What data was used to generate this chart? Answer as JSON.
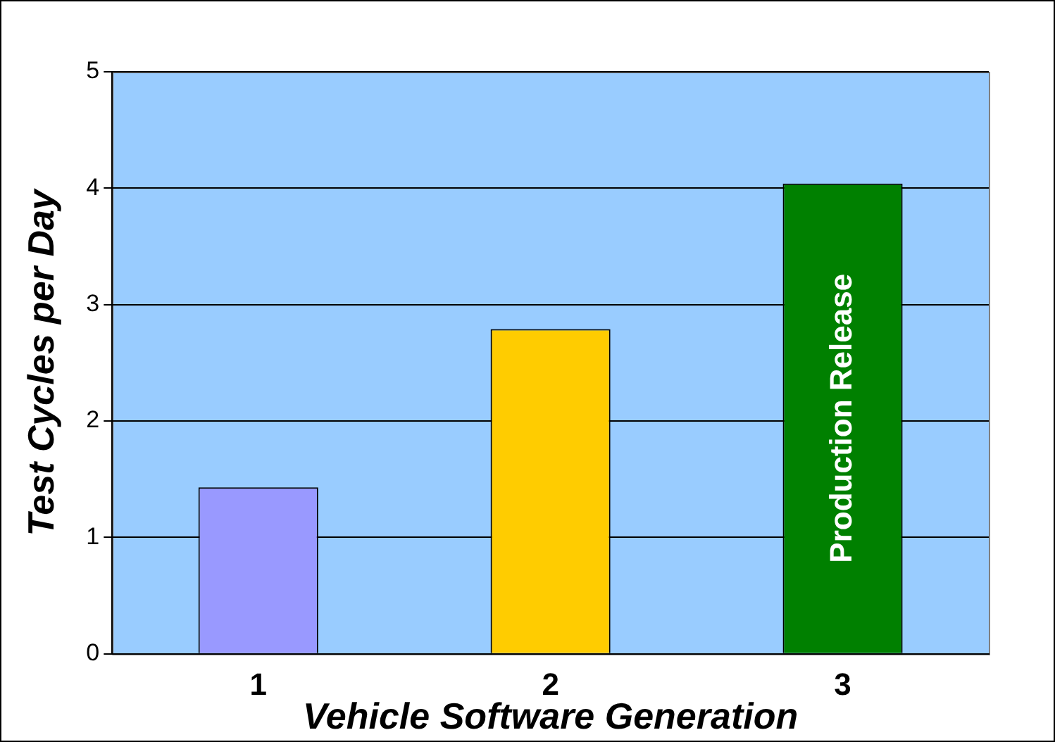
{
  "chart_data": {
    "type": "bar",
    "xlabel": "Vehicle Software Generation",
    "ylabel": "Test Cycles per Day",
    "categories": [
      "1",
      "2",
      "3"
    ],
    "values": [
      1.43,
      2.79,
      4.04
    ],
    "colors": [
      "#9999ff",
      "#ffcc00",
      "#008000"
    ],
    "ylim": [
      0,
      5
    ],
    "yticks": [
      0,
      1,
      2,
      3,
      4,
      5
    ],
    "grid": "y",
    "legend": false,
    "annotations": [
      "Production Release"
    ]
  }
}
